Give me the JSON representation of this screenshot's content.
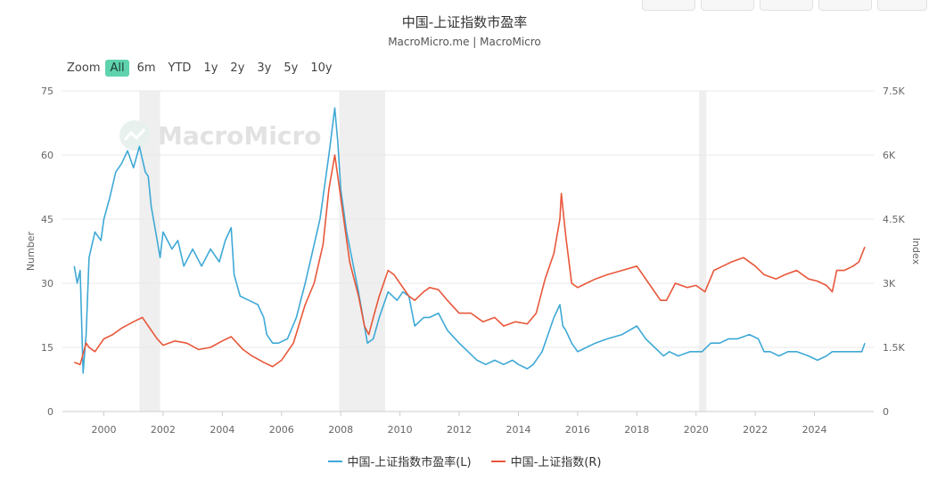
{
  "title": "中国-上证指数市盈率",
  "subtitle": "MacroMicro.me | MacroMicro",
  "watermark": "MacroMicro",
  "zoom": {
    "label": "Zoom",
    "options": [
      "All",
      "6m",
      "YTD",
      "1y",
      "2y",
      "3y",
      "5y",
      "10y"
    ],
    "selected": "All"
  },
  "legend": [
    {
      "label": "中国-上证指数市盈率(L)",
      "color": "#3fa9d6"
    },
    {
      "label": "中国-上证指数(R)",
      "color": "#e8573a"
    }
  ],
  "chart_data": {
    "type": "line",
    "x_range": [
      1998.6,
      2026.0
    ],
    "x_ticks": [
      "2000",
      "2002",
      "2004",
      "2006",
      "2008",
      "2010",
      "2012",
      "2014",
      "2016",
      "2018",
      "2020",
      "2022",
      "2024"
    ],
    "left_axis": {
      "label": "Number",
      "min": 0,
      "max": 75,
      "ticks": [
        "0",
        "15",
        "30",
        "45",
        "60",
        "75"
      ]
    },
    "right_axis": {
      "label": "Index",
      "min": 0,
      "max": 7500,
      "ticks": [
        "0",
        "1.5K",
        "3K",
        "4.5K",
        "6K",
        "7.5K"
      ]
    },
    "shaded_periods": [
      [
        2001.2,
        2001.9
      ],
      [
        2007.95,
        2009.5
      ],
      [
        2020.1,
        2020.35
      ]
    ],
    "grid": true,
    "legend_position": "bottom-center",
    "series": [
      {
        "name": "中国-上证指数市盈率(L)",
        "axis": "left",
        "color": "#3fa9d6",
        "x": [
          1999.0,
          1999.1,
          1999.2,
          1999.3,
          1999.4,
          1999.5,
          1999.7,
          1999.9,
          2000.0,
          2000.2,
          2000.4,
          2000.6,
          2000.8,
          2001.0,
          2001.2,
          2001.4,
          2001.5,
          2001.6,
          2001.8,
          2001.9,
          2002.0,
          2002.3,
          2002.5,
          2002.7,
          2003.0,
          2003.3,
          2003.6,
          2003.9,
          2004.1,
          2004.3,
          2004.4,
          2004.6,
          2004.9,
          2005.2,
          2005.4,
          2005.5,
          2005.7,
          2005.9,
          2006.2,
          2006.5,
          2006.8,
          2007.0,
          2007.3,
          2007.6,
          2007.8,
          2007.9,
          2008.0,
          2008.2,
          2008.4,
          2008.6,
          2008.8,
          2008.9,
          2009.1,
          2009.3,
          2009.6,
          2009.9,
          2010.1,
          2010.3,
          2010.5,
          2010.8,
          2011.0,
          2011.3,
          2011.6,
          2012.0,
          2012.3,
          2012.6,
          2012.9,
          2013.2,
          2013.5,
          2013.8,
          2014.0,
          2014.3,
          2014.5,
          2014.8,
          2015.0,
          2015.2,
          2015.4,
          2015.5,
          2015.6,
          2015.8,
          2016.0,
          2016.3,
          2016.6,
          2017.0,
          2017.5,
          2018.0,
          2018.3,
          2018.6,
          2018.9,
          2019.1,
          2019.4,
          2019.8,
          2020.2,
          2020.5,
          2020.8,
          2021.1,
          2021.4,
          2021.8,
          2022.1,
          2022.3,
          2022.5,
          2022.8,
          2023.1,
          2023.4,
          2023.8,
          2024.1,
          2024.4,
          2024.6,
          2024.8,
          2025.0,
          2025.3,
          2025.6,
          2025.7
        ],
        "y": [
          34,
          30,
          33,
          9,
          18,
          36,
          42,
          40,
          45,
          50,
          56,
          58,
          61,
          57,
          62,
          56,
          55,
          48,
          40,
          36,
          42,
          38,
          40,
          34,
          38,
          34,
          38,
          35,
          40,
          43,
          32,
          27,
          26,
          25,
          22,
          18,
          16,
          16,
          17,
          22,
          30,
          36,
          45,
          60,
          71,
          63,
          52,
          42,
          35,
          28,
          20,
          16,
          17,
          22,
          28,
          26,
          28,
          27,
          20,
          22,
          22,
          23,
          19,
          16,
          14,
          12,
          11,
          12,
          11,
          12,
          11,
          10,
          11,
          14,
          18,
          22,
          25,
          20,
          19,
          16,
          14,
          15,
          16,
          17,
          18,
          20,
          17,
          15,
          13,
          14,
          13,
          14,
          14,
          16,
          16,
          17,
          17,
          18,
          17,
          14,
          14,
          13,
          14,
          14,
          13,
          12,
          13,
          14,
          14,
          14,
          14,
          14,
          16
        ]
      },
      {
        "name": "中国-上证指数(R)",
        "axis": "right",
        "color": "#e8573a",
        "x": [
          1999.0,
          1999.2,
          1999.4,
          1999.5,
          1999.7,
          2000.0,
          2000.3,
          2000.6,
          2001.0,
          2001.3,
          2001.5,
          2001.8,
          2002.0,
          2002.4,
          2002.8,
          2003.2,
          2003.6,
          2004.0,
          2004.3,
          2004.7,
          2005.0,
          2005.4,
          2005.7,
          2006.0,
          2006.4,
          2006.8,
          2007.1,
          2007.4,
          2007.6,
          2007.8,
          2008.0,
          2008.3,
          2008.6,
          2008.8,
          2008.95,
          2009.1,
          2009.3,
          2009.6,
          2009.8,
          2010.0,
          2010.3,
          2010.5,
          2010.8,
          2011.0,
          2011.3,
          2011.6,
          2012.0,
          2012.4,
          2012.8,
          2013.2,
          2013.5,
          2013.9,
          2014.3,
          2014.6,
          2014.9,
          2015.2,
          2015.4,
          2015.45,
          2015.6,
          2015.8,
          2016.0,
          2016.3,
          2016.6,
          2017.0,
          2017.5,
          2018.0,
          2018.4,
          2018.8,
          2019.0,
          2019.3,
          2019.7,
          2020.0,
          2020.3,
          2020.6,
          2020.9,
          2021.2,
          2021.6,
          2022.0,
          2022.3,
          2022.7,
          2023.0,
          2023.4,
          2023.8,
          2024.1,
          2024.4,
          2024.6,
          2024.75,
          2025.0,
          2025.3,
          2025.5,
          2025.7
        ],
        "y": [
          1150,
          1100,
          1600,
          1500,
          1400,
          1700,
          1800,
          1950,
          2100,
          2200,
          2000,
          1700,
          1550,
          1650,
          1600,
          1450,
          1500,
          1650,
          1750,
          1450,
          1300,
          1150,
          1050,
          1200,
          1600,
          2500,
          3000,
          3900,
          5200,
          6000,
          5000,
          3500,
          2700,
          2000,
          1800,
          2200,
          2700,
          3300,
          3200,
          3000,
          2700,
          2600,
          2800,
          2900,
          2850,
          2600,
          2300,
          2300,
          2100,
          2200,
          2000,
          2100,
          2050,
          2300,
          3100,
          3700,
          4500,
          5100,
          4100,
          3000,
          2900,
          3000,
          3100,
          3200,
          3300,
          3400,
          3000,
          2600,
          2600,
          3000,
          2900,
          2950,
          2800,
          3300,
          3400,
          3500,
          3600,
          3400,
          3200,
          3100,
          3200,
          3300,
          3100,
          3050,
          2950,
          2800,
          3300,
          3300,
          3400,
          3500,
          3850
        ]
      }
    ]
  }
}
